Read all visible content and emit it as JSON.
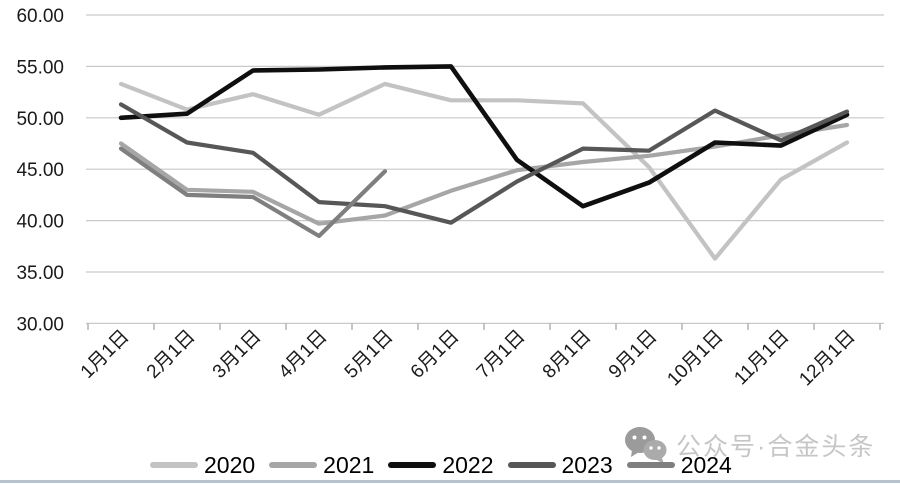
{
  "page": {
    "background": "#ffffff"
  },
  "chart_data": {
    "type": "line",
    "title": "",
    "xlabel": "",
    "ylabel": "",
    "categories": [
      "1月1日",
      "2月1日",
      "3月1日",
      "4月1日",
      "5月1日",
      "6月1日",
      "7月1日",
      "8月1日",
      "9月1日",
      "10月1日",
      "11月1日",
      "12月1日"
    ],
    "series": [
      {
        "name": "2020",
        "color": "#c3c3c3",
        "values": [
          53.3,
          50.8,
          52.3,
          50.3,
          53.3,
          51.7,
          51.7,
          51.4,
          45.2,
          36.3,
          44.0,
          47.6
        ]
      },
      {
        "name": "2021",
        "color": "#a6a6a6",
        "values": [
          47.5,
          43.0,
          42.8,
          39.7,
          40.5,
          42.9,
          44.9,
          45.7,
          46.3,
          47.2,
          48.3,
          49.3
        ]
      },
      {
        "name": "2022",
        "color": "#0f0f0f",
        "values": [
          50.0,
          50.4,
          54.6,
          54.7,
          54.9,
          55.0,
          45.9,
          41.4,
          43.7,
          47.6,
          47.3,
          50.3
        ]
      },
      {
        "name": "2023",
        "color": "#575757",
        "values": [
          51.3,
          47.6,
          46.6,
          41.8,
          41.4,
          39.8,
          43.8,
          47.0,
          46.8,
          50.7,
          47.8,
          50.6
        ]
      },
      {
        "name": "2024",
        "color": "#7f7f7f",
        "values": [
          47.0,
          42.5,
          42.3,
          38.5,
          44.8
        ]
      }
    ],
    "ylim": [
      30,
      60
    ],
    "y_ticks": [
      "60.00",
      "55.00",
      "50.00",
      "45.00",
      "40.00",
      "35.00",
      "30.00"
    ],
    "grid": true,
    "grid_color": "#c9c9c9",
    "tick_color": "#a0a0a0",
    "label_color": "#1a1a1a",
    "legend_position": "bottom"
  },
  "watermark": {
    "icon": "wechat-icon",
    "text": "公众号·合金头条",
    "color": "#c6c6c6"
  },
  "footer": {
    "divider_color": "#b5c2cf"
  }
}
